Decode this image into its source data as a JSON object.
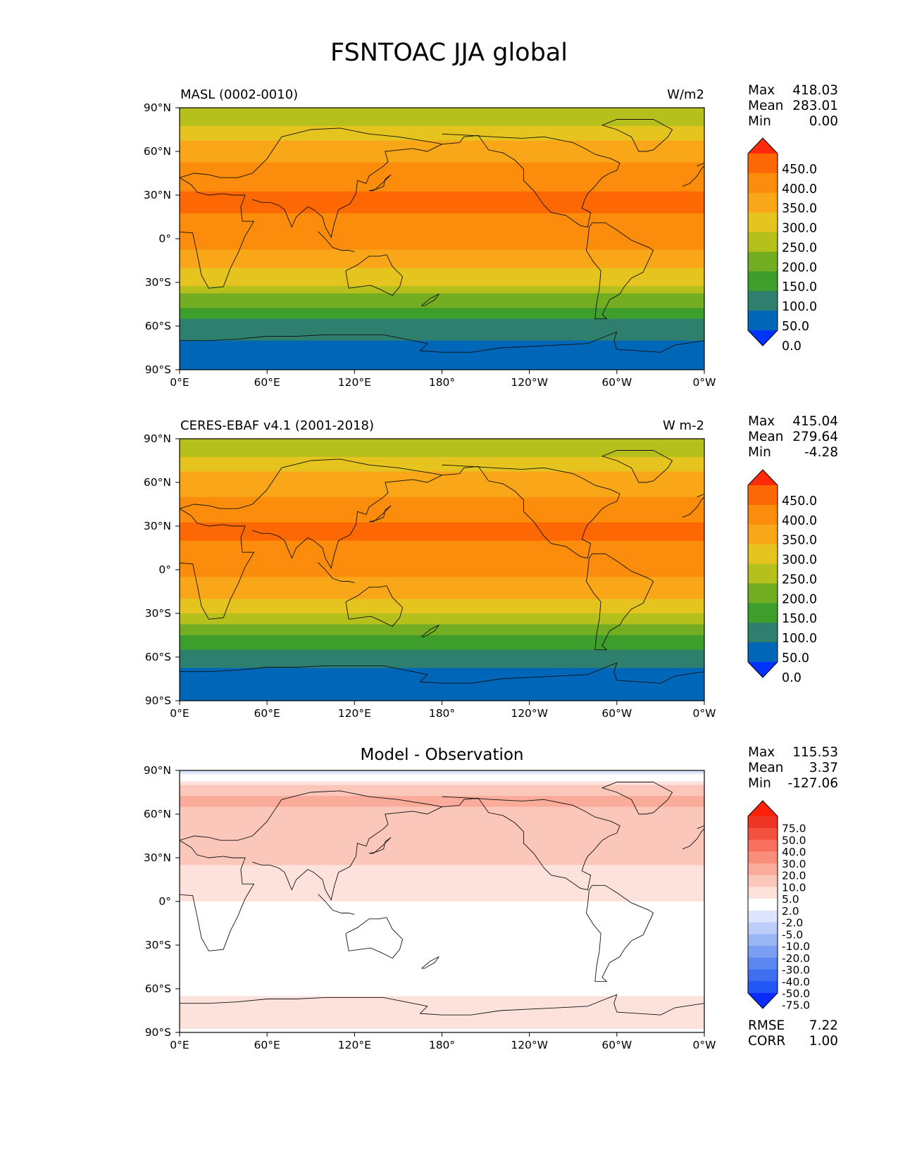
{
  "title": "FSNTOAC JJA global",
  "panels": [
    {
      "id": "model",
      "left_label": "MASL (0002-0010)",
      "center_label": "",
      "units": "W/m2",
      "stats": {
        "max_label": "Max",
        "max": "418.03",
        "mean_label": "Mean",
        "mean": "283.01",
        "min_label": "Min",
        "min": "0.00"
      },
      "extra_stats": null,
      "colorbar": {
        "labels": [
          "450.0",
          "400.0",
          "350.0",
          "300.0",
          "250.0",
          "200.0",
          "150.0",
          "100.0",
          "50.0",
          "0.0"
        ],
        "colors": [
          "#0033ff",
          "#0066b8",
          "#2e7f6e",
          "#3d9e2c",
          "#72ad22",
          "#b5c01d",
          "#e6c41f",
          "#f9a719",
          "#fb8c0c",
          "#fd6804",
          "#ff2a0a"
        ]
      }
    },
    {
      "id": "obs",
      "left_label": "CERES-EBAF v4.1 (2001-2018)",
      "center_label": "",
      "units": "W m-2",
      "stats": {
        "max_label": "Max",
        "max": "415.04",
        "mean_label": "Mean",
        "mean": "279.64",
        "min_label": "Min",
        "min": "-4.28"
      },
      "extra_stats": null,
      "colorbar": {
        "labels": [
          "450.0",
          "400.0",
          "350.0",
          "300.0",
          "250.0",
          "200.0",
          "150.0",
          "100.0",
          "50.0",
          "0.0"
        ],
        "colors": [
          "#0033ff",
          "#0066b8",
          "#2e7f6e",
          "#3d9e2c",
          "#72ad22",
          "#b5c01d",
          "#e6c41f",
          "#f9a719",
          "#fb8c0c",
          "#fd6804",
          "#ff2a0a"
        ]
      }
    },
    {
      "id": "diff",
      "left_label": "",
      "center_label": "Model - Observation",
      "units": "",
      "stats": {
        "max_label": "Max",
        "max": "115.53",
        "mean_label": "Mean",
        "mean": "3.37",
        "min_label": "Min",
        "min": "-127.06"
      },
      "extra_stats": {
        "rmse_label": "RMSE",
        "rmse": "7.22",
        "corr_label": "CORR",
        "corr": "1.00"
      },
      "colorbar": {
        "labels": [
          "75.0",
          "50.0",
          "40.0",
          "30.0",
          "20.0",
          "10.0",
          "5.0",
          "2.0",
          "-2.0",
          "-5.0",
          "-10.0",
          "-20.0",
          "-30.0",
          "-40.0",
          "-50.0",
          "-75.0"
        ],
        "colors": [
          "#0a2dff",
          "#2256f5",
          "#3f6ef0",
          "#5a86ef",
          "#7a9ff2",
          "#9bb6f4",
          "#bccdf8",
          "#dce5fb",
          "#ffffff",
          "#fde2dc",
          "#fcc7bb",
          "#fbab9a",
          "#f98e7a",
          "#f6705b",
          "#f2523e",
          "#ee3425",
          "#ff2208"
        ]
      }
    }
  ],
  "axes": {
    "x_ticks": [
      "0°E",
      "60°E",
      "120°E",
      "180°",
      "120°W",
      "60°W",
      "0°W"
    ],
    "y_ticks": [
      "90°N",
      "60°N",
      "30°N",
      "0°",
      "30°S",
      "60°S",
      "90°S"
    ]
  },
  "chart_data": [
    {
      "type": "heatmap",
      "name": "MASL (0002-0010)",
      "units": "W/m2",
      "x": [
        0,
        60,
        120,
        180,
        240,
        300,
        360
      ],
      "y": [
        90,
        60,
        30,
        0,
        -30,
        -60,
        -90
      ],
      "xlim": [
        0,
        360
      ],
      "ylim": [
        -90,
        90
      ],
      "levels": [
        0,
        50,
        100,
        150,
        200,
        250,
        300,
        350,
        400,
        450
      ],
      "zonal_profile": {
        "lat": [
          90,
          80,
          70,
          60,
          50,
          40,
          30,
          20,
          10,
          0,
          -10,
          -20,
          -30,
          -40,
          -50,
          -60,
          -70,
          -80,
          -90
        ],
        "value": [
          210,
          240,
          290,
          330,
          355,
          380,
          405,
          405,
          380,
          360,
          345,
          305,
          260,
          185,
          130,
          75,
          50,
          40,
          30
        ]
      },
      "max": 418.03,
      "mean": 283.01,
      "min": 0.0
    },
    {
      "type": "heatmap",
      "name": "CERES-EBAF v4.1 (2001-2018)",
      "units": "W m-2",
      "x": [
        0,
        60,
        120,
        180,
        240,
        300,
        360
      ],
      "y": [
        90,
        60,
        30,
        0,
        -30,
        -60,
        -90
      ],
      "xlim": [
        0,
        360
      ],
      "ylim": [
        -90,
        90
      ],
      "levels": [
        0,
        50,
        100,
        150,
        200,
        250,
        300,
        350,
        400,
        450
      ],
      "zonal_profile": {
        "lat": [
          90,
          80,
          70,
          60,
          50,
          40,
          30,
          20,
          10,
          0,
          -10,
          -20,
          -30,
          -40,
          -50,
          -60,
          -70,
          -80,
          -90
        ],
        "value": [
          210,
          235,
          285,
          325,
          350,
          375,
          405,
          400,
          375,
          360,
          340,
          300,
          255,
          180,
          125,
          70,
          45,
          20,
          0
        ]
      },
      "max": 415.04,
      "mean": 279.64,
      "min": -4.28
    },
    {
      "type": "heatmap",
      "name": "Model - Observation",
      "x": [
        0,
        60,
        120,
        180,
        240,
        300,
        360
      ],
      "y": [
        90,
        60,
        30,
        0,
        -30,
        -60,
        -90
      ],
      "xlim": [
        0,
        360
      ],
      "ylim": [
        -90,
        90
      ],
      "levels": [
        -75,
        -50,
        -40,
        -30,
        -20,
        -10,
        -5,
        -2,
        2,
        5,
        10,
        20,
        30,
        40,
        50,
        75
      ],
      "zonal_profile": {
        "lat": [
          90,
          80,
          70,
          60,
          50,
          40,
          30,
          20,
          10,
          0,
          -10,
          -20,
          -30,
          -40,
          -50,
          -60,
          -70,
          -80,
          -90
        ],
        "value": [
          -3,
          4,
          12,
          8,
          6,
          5,
          6,
          4,
          3,
          2,
          1,
          0,
          0,
          0,
          0,
          1,
          3,
          4,
          1
        ]
      },
      "max": 115.53,
      "mean": 3.37,
      "min": -127.06,
      "rmse": 7.22,
      "corr": 1.0
    }
  ]
}
